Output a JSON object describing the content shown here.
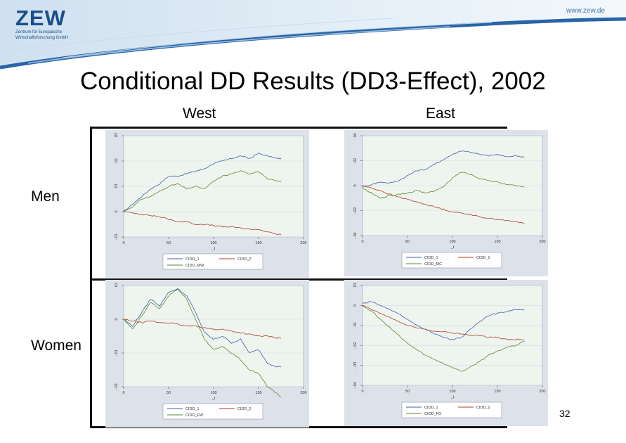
{
  "header": {
    "logo_text": "ZEW",
    "logo_tagline_1": "Zentrum für Europäische",
    "logo_tagline_2": "Wirtschaftsforschung GmbH",
    "url": "www.zew.de"
  },
  "slide": {
    "title": "Conditional DD Results (DD3-Effect), 2002",
    "col_west": "West",
    "col_east": "East",
    "row_men": "Men",
    "row_women": "Women",
    "page_number": "32"
  },
  "colors": {
    "panel_bg": "#dde1ea",
    "plot_bg": "#eef4ee",
    "blue_series": "#3d5fa8",
    "red_series": "#b23a2a",
    "green_series": "#5a8a2e"
  },
  "chart_data": [
    {
      "type": "line",
      "xlabel": "_t",
      "xlim": [
        0,
        200
      ],
      "xticks": [
        "0",
        "50",
        "100",
        "150",
        "200"
      ],
      "ylim": [
        -0.01,
        0.03
      ],
      "yticks": [
        "-.01",
        "0",
        ".01",
        ".02",
        ".03"
      ],
      "grid": true,
      "legend_position": "bottom",
      "series": [
        {
          "name": "CIDD_1",
          "color": "#3d5fa8",
          "x": [
            0,
            10,
            20,
            30,
            40,
            50,
            60,
            70,
            80,
            90,
            100,
            110,
            120,
            130,
            140,
            150,
            160,
            170,
            175
          ],
          "y": [
            0,
            0.003,
            0.006,
            0.009,
            0.011,
            0.014,
            0.014,
            0.015,
            0.016,
            0.017,
            0.019,
            0.02,
            0.021,
            0.022,
            0.021,
            0.023,
            0.022,
            0.021,
            0.021
          ]
        },
        {
          "name": "CIDD_2",
          "color": "#b23a2a",
          "x": [
            0,
            10,
            20,
            30,
            40,
            50,
            60,
            70,
            80,
            90,
            100,
            110,
            120,
            130,
            140,
            150,
            160,
            170,
            175
          ],
          "y": [
            0,
            -0.0005,
            -0.001,
            -0.0015,
            -0.002,
            -0.003,
            -0.004,
            -0.004,
            -0.005,
            -0.005,
            -0.0055,
            -0.006,
            -0.006,
            -0.0065,
            -0.007,
            -0.007,
            -0.008,
            -0.009,
            -0.009
          ]
        },
        {
          "name": "CIDD_MW",
          "color": "#5a8a2e",
          "x": [
            0,
            10,
            20,
            30,
            40,
            50,
            60,
            70,
            80,
            90,
            100,
            110,
            120,
            130,
            140,
            150,
            160,
            170,
            175
          ],
          "y": [
            0,
            0.002,
            0.005,
            0.006,
            0.008,
            0.01,
            0.011,
            0.009,
            0.01,
            0.009,
            0.012,
            0.014,
            0.015,
            0.016,
            0.015,
            0.016,
            0.013,
            0.012,
            0.012
          ]
        }
      ]
    },
    {
      "type": "line",
      "xlabel": "_t",
      "xlim": [
        0,
        200
      ],
      "xticks": [
        "0",
        "50",
        "100",
        "150",
        "200"
      ],
      "ylim": [
        -0.04,
        0.04
      ],
      "yticks": [
        "-.04",
        "-.02",
        "0",
        ".02",
        ".04"
      ],
      "grid": true,
      "legend_position": "bottom",
      "series": [
        {
          "name": "CIDD_1",
          "color": "#3d5fa8",
          "x": [
            0,
            10,
            20,
            30,
            40,
            50,
            60,
            70,
            80,
            90,
            100,
            110,
            120,
            130,
            140,
            150,
            160,
            170,
            180
          ],
          "y": [
            -0.001,
            0.001,
            0.003,
            0.002,
            0.004,
            0.008,
            0.012,
            0.013,
            0.017,
            0.021,
            0.025,
            0.028,
            0.027,
            0.025,
            0.024,
            0.025,
            0.023,
            0.024,
            0.023
          ]
        },
        {
          "name": "CIDD_2",
          "color": "#b23a2a",
          "x": [
            0,
            10,
            20,
            30,
            40,
            50,
            60,
            70,
            80,
            90,
            100,
            110,
            120,
            130,
            140,
            150,
            160,
            170,
            180
          ],
          "y": [
            0,
            -0.002,
            -0.004,
            -0.007,
            -0.009,
            -0.011,
            -0.013,
            -0.015,
            -0.017,
            -0.019,
            -0.021,
            -0.022,
            -0.023,
            -0.025,
            -0.026,
            -0.027,
            -0.028,
            -0.029,
            -0.03
          ]
        },
        {
          "name": "CIDD_MC",
          "color": "#5a8a2e",
          "x": [
            0,
            10,
            20,
            30,
            40,
            50,
            60,
            70,
            80,
            90,
            100,
            110,
            120,
            130,
            140,
            150,
            160,
            170,
            180
          ],
          "y": [
            -0.002,
            -0.006,
            -0.01,
            -0.008,
            -0.007,
            -0.006,
            -0.004,
            -0.006,
            -0.004,
            -0.001,
            0.006,
            0.011,
            0.009,
            0.006,
            0.004,
            0.003,
            0.001,
            0.0,
            -0.001
          ]
        }
      ]
    },
    {
      "type": "line",
      "xlabel": "_t",
      "xlim": [
        0,
        200
      ],
      "xticks": [
        "0",
        "50",
        "100",
        "150",
        "200"
      ],
      "ylim": [
        -0.02,
        0.01
      ],
      "yticks": [
        "-.02",
        "-.01",
        "0",
        ".01"
      ],
      "grid": true,
      "legend_position": "bottom",
      "series": [
        {
          "name": "CIDD_1",
          "color": "#3d5fa8",
          "x": [
            0,
            10,
            20,
            30,
            40,
            50,
            60,
            70,
            80,
            90,
            100,
            110,
            120,
            130,
            140,
            150,
            160,
            170,
            175
          ],
          "y": [
            0,
            -0.002,
            0.002,
            0.006,
            0.004,
            0.008,
            0.009,
            0.007,
            0.002,
            -0.004,
            -0.006,
            -0.005,
            -0.007,
            -0.006,
            -0.01,
            -0.009,
            -0.013,
            -0.014,
            -0.014
          ]
        },
        {
          "name": "CIDD_2",
          "color": "#b23a2a",
          "x": [
            0,
            10,
            20,
            30,
            40,
            50,
            60,
            70,
            80,
            90,
            100,
            110,
            120,
            130,
            140,
            150,
            160,
            170,
            175
          ],
          "y": [
            0,
            -0.0005,
            -0.001,
            -0.0005,
            -0.001,
            -0.001,
            -0.0015,
            -0.002,
            -0.002,
            -0.0025,
            -0.003,
            -0.003,
            -0.0035,
            -0.004,
            -0.0045,
            -0.005,
            -0.005,
            -0.0055,
            -0.0055
          ]
        },
        {
          "name": "CIDD_FW",
          "color": "#5a8a2e",
          "x": [
            0,
            10,
            20,
            30,
            40,
            50,
            60,
            70,
            80,
            90,
            100,
            110,
            120,
            130,
            140,
            150,
            160,
            170,
            175
          ],
          "y": [
            0,
            -0.003,
            0.001,
            0.005,
            0.003,
            0.007,
            0.009,
            0.006,
            0.0,
            -0.006,
            -0.009,
            -0.008,
            -0.01,
            -0.012,
            -0.015,
            -0.016,
            -0.02,
            -0.022,
            -0.023
          ]
        }
      ]
    },
    {
      "type": "line",
      "xlabel": "_t",
      "xlim": [
        0,
        200
      ],
      "xticks": [
        "0",
        "50",
        "100",
        "150",
        "200"
      ],
      "ylim": [
        -0.04,
        0.01
      ],
      "yticks": [
        "-.04",
        "-.03",
        "-.02",
        "-.01",
        "0",
        ".01"
      ],
      "grid": true,
      "legend_position": "bottom",
      "series": [
        {
          "name": "CIDD_1",
          "color": "#3d5fa8",
          "x": [
            0,
            10,
            20,
            30,
            40,
            50,
            60,
            70,
            80,
            90,
            100,
            110,
            120,
            130,
            140,
            150,
            160,
            170,
            180
          ],
          "y": [
            0.001,
            0.002,
            0.0,
            -0.002,
            -0.004,
            -0.007,
            -0.01,
            -0.012,
            -0.014,
            -0.016,
            -0.017,
            -0.016,
            -0.012,
            -0.008,
            -0.005,
            -0.004,
            -0.003,
            -0.002,
            -0.002
          ]
        },
        {
          "name": "CIDD_2",
          "color": "#b23a2a",
          "x": [
            0,
            10,
            20,
            30,
            40,
            50,
            60,
            70,
            80,
            90,
            100,
            110,
            120,
            130,
            140,
            150,
            160,
            170,
            180
          ],
          "y": [
            0,
            -0.002,
            -0.004,
            -0.006,
            -0.008,
            -0.01,
            -0.011,
            -0.012,
            -0.013,
            -0.013,
            -0.014,
            -0.014,
            -0.015,
            -0.015,
            -0.016,
            -0.016,
            -0.017,
            -0.017,
            -0.017
          ]
        },
        {
          "name": "CIDD_FO",
          "color": "#5a8a2e",
          "x": [
            0,
            10,
            20,
            30,
            40,
            50,
            60,
            70,
            80,
            90,
            100,
            110,
            120,
            130,
            140,
            150,
            160,
            170,
            180
          ],
          "y": [
            0,
            -0.003,
            -0.007,
            -0.011,
            -0.015,
            -0.019,
            -0.022,
            -0.025,
            -0.027,
            -0.029,
            -0.031,
            -0.033,
            -0.031,
            -0.028,
            -0.025,
            -0.023,
            -0.021,
            -0.02,
            -0.018
          ]
        }
      ]
    }
  ]
}
